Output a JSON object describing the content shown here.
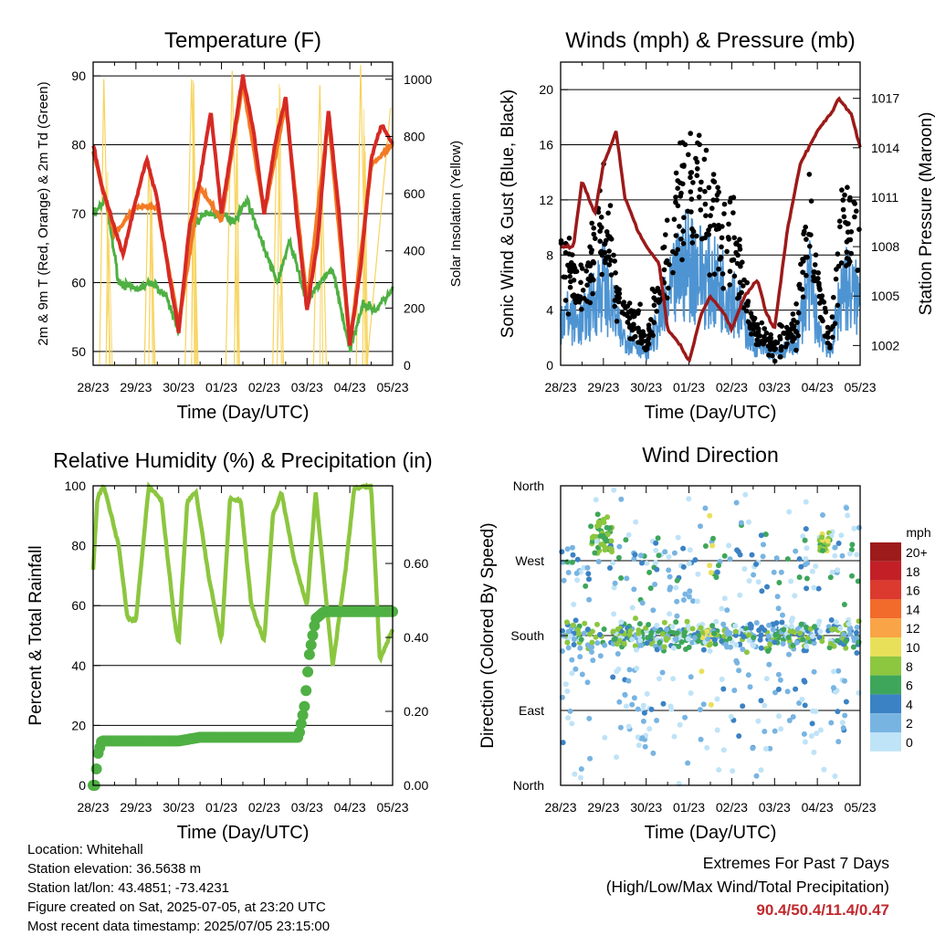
{
  "colors": {
    "temp_2m": "#d62a24",
    "temp_9m": "#f47a24",
    "dewpoint": "#4fb043",
    "solar": "#f7d35c",
    "wind": "#4e94d2",
    "gust": "#000000",
    "pressure": "#9c1a1a",
    "rh": "#8cc63f",
    "precip": "#4fb043",
    "extremes_text": "#c0292e"
  },
  "chart_data": [
    {
      "type": "line",
      "title": "Temperature (F)",
      "xlabel": "Time (Day/UTC)",
      "ylabel": "2m & 9m T (Red, Orange) & 2m Td (Green)",
      "y2label": "Solar Insolation (Yellow)",
      "x_ticks": [
        "28/23",
        "29/23",
        "30/23",
        "01/23",
        "02/23",
        "03/23",
        "04/23",
        "05/23"
      ],
      "y_ticks": [
        50,
        60,
        70,
        80,
        90
      ],
      "y2_ticks": [
        0,
        200,
        400,
        600,
        800,
        1000
      ],
      "ylim": [
        48,
        92
      ],
      "y2lim": [
        0,
        1060
      ],
      "grid": "horizontal",
      "series": [
        {
          "name": "2m T",
          "x": [
            0,
            0.2,
            0.5,
            0.7,
            1.0,
            1.25,
            1.5,
            1.75,
            2.0,
            2.25,
            2.5,
            2.75,
            3.0,
            3.25,
            3.5,
            3.75,
            4.0,
            4.25,
            4.5,
            4.75,
            5.0,
            5.25,
            5.5,
            5.75,
            6.0,
            6.25,
            6.5,
            6.75,
            7.0
          ],
          "y": [
            80,
            74,
            68,
            64,
            72,
            78,
            72,
            62,
            53,
            68,
            75,
            85,
            70,
            80,
            90,
            82,
            70,
            80,
            87,
            70,
            56,
            66,
            85,
            70,
            51,
            62,
            78,
            83,
            80
          ]
        },
        {
          "name": "9m T",
          "x": [
            0,
            0.5,
            1.0,
            1.5,
            2.0,
            2.5,
            3.0,
            3.5,
            4.0,
            4.5,
            5.0,
            5.5,
            6.0,
            6.5,
            7.0
          ],
          "y": [
            79,
            67,
            71,
            71,
            54,
            74,
            69,
            89,
            70,
            86,
            57,
            84,
            51,
            77,
            80
          ]
        },
        {
          "name": "2m Td",
          "x": [
            0,
            0.3,
            0.6,
            1.0,
            1.4,
            1.7,
            2.0,
            2.3,
            2.6,
            3.0,
            3.3,
            3.6,
            4.0,
            4.3,
            4.6,
            5.0,
            5.3,
            5.6,
            6.0,
            6.3,
            6.6,
            7.0
          ],
          "y": [
            70,
            72,
            60,
            59,
            60,
            58,
            53,
            68,
            70,
            70,
            69,
            72,
            65,
            60,
            66,
            57,
            60,
            62,
            50,
            57,
            56,
            59
          ]
        },
        {
          "name": "Solar",
          "x": [
            0.15,
            0.25,
            0.4,
            1.2,
            1.3,
            1.45,
            2.15,
            2.3,
            2.45,
            3.1,
            3.25,
            3.4,
            4.2,
            4.3,
            4.45,
            5.15,
            5.3,
            5.45,
            6.15,
            6.25,
            6.4,
            6.95
          ],
          "y": [
            0,
            1000,
            0,
            0,
            700,
            0,
            0,
            1000,
            0,
            0,
            1030,
            0,
            0,
            900,
            0,
            0,
            980,
            0,
            0,
            1050,
            0,
            900
          ]
        }
      ]
    },
    {
      "type": "scatter",
      "title": "Winds (mph) & Pressure (mb)",
      "xlabel": "Time (Day/UTC)",
      "ylabel": "Sonic Wind & Gust (Blue, Black)",
      "y2label": "Station Pressure (Maroon)",
      "x_ticks": [
        "28/23",
        "29/23",
        "30/23",
        "01/23",
        "02/23",
        "03/23",
        "04/23",
        "05/23"
      ],
      "y_ticks": [
        0,
        4,
        8,
        12,
        16,
        20
      ],
      "y2_ticks": [
        1002,
        1005,
        1008,
        1011,
        1014,
        1017
      ],
      "ylim": [
        0,
        22
      ],
      "y2lim": [
        1000.8,
        1019.2
      ],
      "grid": "horizontal",
      "series": [
        {
          "name": "Pressure",
          "x": [
            0,
            0.3,
            0.5,
            0.8,
            1.0,
            1.3,
            1.5,
            1.8,
            2.0,
            2.3,
            2.5,
            2.8,
            3.0,
            3.3,
            3.5,
            3.8,
            4.0,
            4.3,
            4.6,
            4.8,
            5.0,
            5.3,
            5.6,
            6.0,
            6.3,
            6.5,
            6.8,
            7.0
          ],
          "y": [
            1008,
            1008,
            1012,
            1010,
            1013,
            1015,
            1011,
            1009,
            1008,
            1007,
            1003,
            1002,
            1001,
            1004,
            1005,
            1004,
            1003,
            1005,
            1006,
            1004,
            1003,
            1009,
            1013,
            1015,
            1016,
            1017,
            1016,
            1014
          ]
        }
      ]
    },
    {
      "type": "line",
      "title": "Relative Humidity (%) & Precipitation (in)",
      "xlabel": "Time (Day/UTC)",
      "ylabel": "Percent & Total Rainfall",
      "x_ticks": [
        "28/23",
        "29/23",
        "30/23",
        "01/23",
        "02/23",
        "03/23",
        "04/23",
        "05/23"
      ],
      "y_ticks": [
        0,
        20,
        40,
        60,
        80,
        100
      ],
      "y2_ticks": [
        "0.00",
        "0.20",
        "0.40",
        "0.60"
      ],
      "ylim": [
        0,
        100
      ],
      "y2lim": [
        0,
        0.81
      ],
      "grid": "horizontal",
      "series": [
        {
          "name": "RH",
          "x": [
            0,
            0.1,
            0.25,
            0.6,
            0.8,
            1.0,
            1.3,
            1.6,
            1.9,
            2.0,
            2.2,
            2.4,
            2.7,
            3.0,
            3.2,
            3.45,
            3.7,
            4.0,
            4.2,
            4.4,
            4.7,
            5.0,
            5.2,
            5.6,
            5.9,
            6.1,
            6.5,
            6.7,
            7.0
          ],
          "y": [
            72,
            96,
            100,
            80,
            56,
            55,
            100,
            95,
            55,
            47,
            95,
            98,
            70,
            48,
            96,
            95,
            60,
            48,
            90,
            98,
            75,
            60,
            98,
            40,
            72,
            99,
            100,
            42,
            52
          ]
        },
        {
          "name": "Precipitation",
          "x": [
            0,
            0.05,
            0.1,
            0.2,
            2.0,
            2.5,
            4.8,
            4.95,
            5.05,
            5.2,
            5.4,
            7.0
          ],
          "y": [
            0,
            0,
            0.08,
            0.12,
            0.12,
            0.13,
            0.13,
            0.22,
            0.35,
            0.45,
            0.47,
            0.47
          ]
        }
      ]
    },
    {
      "type": "scatter",
      "title": "Wind Direction",
      "xlabel": "Time (Day/UTC)",
      "ylabel": "Direction (Colored By Speed)",
      "x_ticks": [
        "28/23",
        "29/23",
        "30/23",
        "01/23",
        "02/23",
        "03/23",
        "04/23",
        "05/23"
      ],
      "y_ticks": [
        "North",
        "East",
        "South",
        "West",
        "North"
      ],
      "ylim": [
        0,
        360
      ],
      "grid": "horizontal",
      "legend": {
        "title": "mph",
        "labels": [
          "20+",
          "18",
          "16",
          "14",
          "12",
          "10",
          "8",
          "6",
          "4",
          "2",
          "0"
        ],
        "colors": [
          "#9e1b1b",
          "#c22026",
          "#dc3a2e",
          "#f26b2b",
          "#f9a446",
          "#e9e05a",
          "#8dc63f",
          "#3ea65b",
          "#3b82c4",
          "#78b4e2",
          "#bfe3f7"
        ],
        "placement": "right"
      }
    }
  ],
  "info": {
    "location": "Location: Whitehall",
    "elevation": "Station elevation: 36.5638 m",
    "latlon": "Station lat/lon: 43.4851; -73.4231",
    "created": "Figure created on Sat, 2025-07-05, at 23:20 UTC",
    "recent": "Most recent data timestamp: 2025/07/05 23:15:00"
  },
  "extremes": {
    "line1": "Extremes For Past 7 Days",
    "line2": "(High/Low/Max Wind/Total Precipitation)",
    "values": "90.4/50.4/11.4/0.47"
  }
}
